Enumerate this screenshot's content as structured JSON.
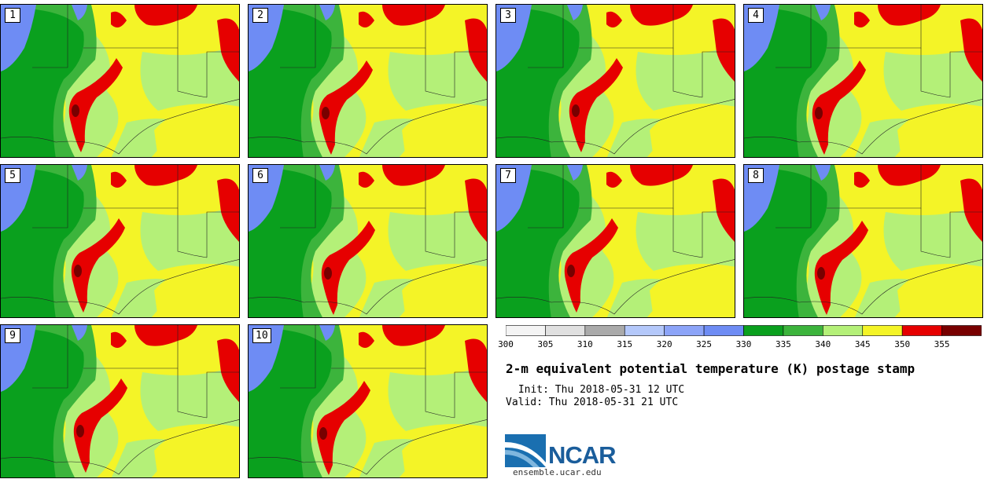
{
  "title": "2-m equivalent potential temperature (K) postage stamp",
  "init": " Init: Thu 2018-05-31 12 UTC",
  "valid": "Valid: Thu 2018-05-31 21 UTC",
  "members": [
    "1",
    "2",
    "3",
    "4",
    "5",
    "6",
    "7",
    "8",
    "9",
    "10"
  ],
  "colorbar": {
    "min": 300,
    "max": 360,
    "step": 5,
    "tick_labels": [
      "300",
      "305",
      "310",
      "315",
      "320",
      "325",
      "330",
      "335",
      "340",
      "345",
      "350",
      "355"
    ],
    "colors": [
      "#f4f4f4",
      "#e0e0e0",
      "#aaaaaa",
      "#b4c8fa",
      "#8ca4f8",
      "#6e8cf4",
      "#0aa01e",
      "#3cb43c",
      "#b4f078",
      "#f4f427",
      "#e60000",
      "#780000"
    ]
  },
  "logo": {
    "name": "NCAR",
    "site": "ensemble.ucar.edu"
  }
}
